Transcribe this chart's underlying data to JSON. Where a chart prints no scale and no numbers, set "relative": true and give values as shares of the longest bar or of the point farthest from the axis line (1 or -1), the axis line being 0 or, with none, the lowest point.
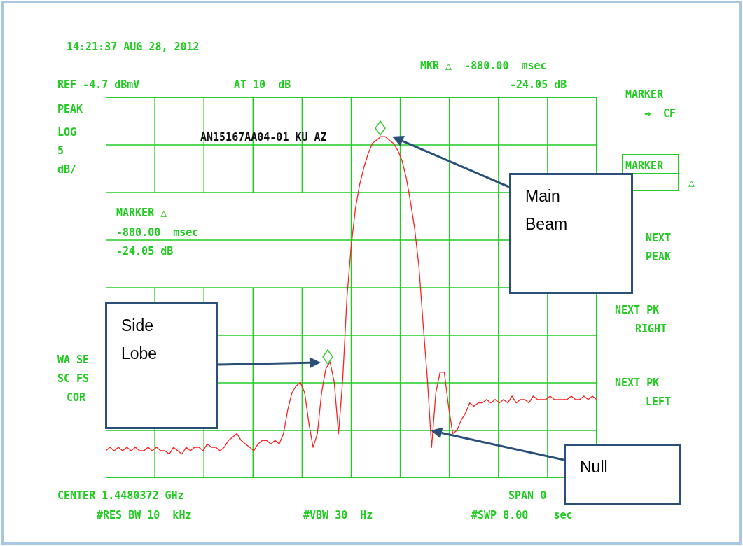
{
  "chart_data": {
    "type": "line",
    "relative": true,
    "grid": true,
    "categories": [
      null,
      null,
      null,
      null,
      null,
      null,
      null,
      null,
      null,
      null,
      null,
      null,
      null,
      null,
      null,
      null,
      null,
      null,
      null,
      null,
      null,
      null,
      null,
      null,
      null,
      null,
      null,
      null,
      null,
      null,
      null,
      null,
      null,
      null,
      null,
      null,
      null,
      null,
      null,
      null,
      null,
      null,
      null,
      null,
      null,
      null,
      null,
      null,
      null,
      null,
      null,
      null,
      null,
      null,
      null,
      null,
      null,
      null,
      null,
      null,
      null,
      null,
      null,
      null,
      null,
      null,
      null,
      null,
      null,
      null,
      null,
      null,
      null,
      null,
      null,
      null,
      null,
      null,
      null,
      null,
      null,
      null,
      null,
      null,
      null,
      null,
      null,
      null,
      null,
      null,
      null,
      null,
      null,
      null,
      null,
      null,
      null,
      null,
      null,
      null,
      null,
      null,
      null,
      null,
      null,
      null,
      null,
      null,
      null,
      null,
      null,
      null,
      null,
      null,
      null,
      null,
      null
    ],
    "series": [
      {
        "color": "#ff2020",
        "values": [
          0.08,
          0.09,
          0.08,
          0.09,
          0.08,
          0.09,
          0.08,
          0.09,
          0.08,
          0.08,
          0.09,
          0.08,
          0.09,
          0.08,
          0.08,
          0.07,
          0.09,
          0.08,
          0.07,
          0.09,
          0.08,
          0.09,
          0.09,
          0.08,
          0.1,
          0.09,
          0.09,
          0.08,
          0.09,
          0.11,
          0.12,
          0.13,
          0.11,
          0.1,
          0.09,
          0.08,
          0.1,
          0.11,
          0.11,
          0.1,
          0.11,
          0.1,
          0.13,
          0.2,
          0.25,
          0.27,
          0.28,
          0.25,
          0.16,
          0.09,
          0.13,
          0.25,
          0.32,
          0.34,
          0.28,
          0.13,
          0.29,
          0.53,
          0.68,
          0.79,
          0.86,
          0.91,
          0.95,
          0.98,
          0.99,
          1.0,
          1.0,
          0.99,
          0.98,
          0.96,
          0.93,
          0.88,
          0.81,
          0.73,
          0.62,
          0.45,
          0.29,
          0.09,
          0.25,
          0.31,
          0.31,
          0.21,
          0.13,
          0.14,
          0.17,
          0.19,
          0.22,
          0.21,
          0.22,
          0.22,
          0.23,
          0.22,
          0.23,
          0.22,
          0.23,
          0.22,
          0.24,
          0.22,
          0.23,
          0.23,
          0.22,
          0.24,
          0.23,
          0.23,
          0.23,
          0.24,
          0.23,
          0.23,
          0.23,
          0.23,
          0.24,
          0.23,
          0.23,
          0.24,
          0.23,
          0.24,
          0.23
        ]
      }
    ],
    "annotations": [
      "14:21:37 AUG 28, 2012",
      "REF -4.7 dBmV",
      "AT 10  dB",
      "MKR △  -880.00  msec",
      "-24.05 dB",
      "PEAK",
      "LOG",
      "5",
      "dB/",
      "MARKER",
      "→  CF",
      "MARKER",
      "△",
      "NEXT",
      "PEAK",
      "NEXT PK",
      "RIGHT",
      "NEXT PK",
      "LEFT",
      "AN15167AA04-01 KU AZ",
      "MARKER △",
      "-880.00  msec",
      "-24.05 dB",
      "WA SE",
      "SC FS",
      "COR",
      "CENTER 1.4480372 GHz",
      "SPAN 0",
      "#RES BW 10  kHz",
      "#VBW 30  Hz",
      "#SWP 8.00    sec",
      "Main Beam",
      "Side Lobe",
      "Null"
    ]
  }
}
